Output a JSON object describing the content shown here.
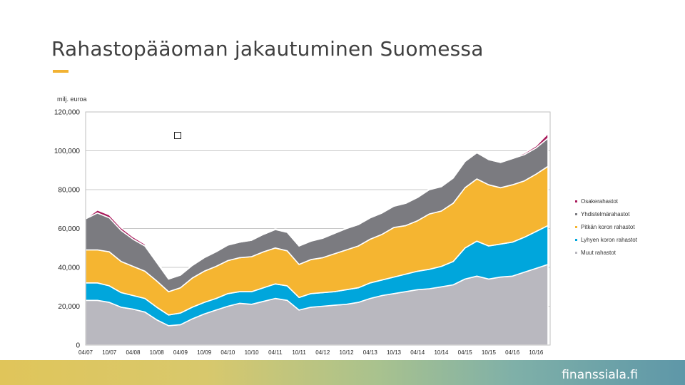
{
  "slide": {
    "title": "Rahastopääoman jakautuminen Suomessa",
    "footer_brand": "finanssiala.fi"
  },
  "colors": {
    "muut": "#b9b8bf",
    "lyhyen": "#00a6dc",
    "pitkan": "#f5b531",
    "yhdistelma": "#7b7b80",
    "osake": "#a8195a",
    "accent": "#f2b233"
  },
  "chart_data": {
    "type": "area",
    "stacked": true,
    "unit_label": "milj. euroa",
    "ylim": [
      0,
      120000
    ],
    "y_ticks": [
      "0",
      "20,000",
      "40,000",
      "60,000",
      "80,000",
      "100,000",
      "120,000"
    ],
    "y_tick_values": [
      0,
      20000,
      40000,
      60000,
      80000,
      100000,
      120000
    ],
    "x_ticks": [
      "04/07",
      "10/07",
      "04/08",
      "10/08",
      "04/09",
      "10/09",
      "04/10",
      "10/10",
      "04/11",
      "10/11",
      "04/12",
      "10/12",
      "04/13",
      "10/13",
      "04/14",
      "10/14",
      "04/15",
      "10/15",
      "04/16",
      "10/16"
    ],
    "x": [
      "04/07",
      "07/07",
      "10/07",
      "01/08",
      "04/08",
      "07/08",
      "10/08",
      "01/09",
      "04/09",
      "07/09",
      "10/09",
      "01/10",
      "04/10",
      "07/10",
      "10/10",
      "01/11",
      "04/11",
      "07/11",
      "10/11",
      "01/12",
      "04/12",
      "07/12",
      "10/12",
      "01/13",
      "04/13",
      "07/13",
      "10/13",
      "01/14",
      "04/14",
      "07/14",
      "10/14",
      "01/15",
      "04/15",
      "07/15",
      "10/15",
      "01/16",
      "04/16",
      "07/16",
      "10/16",
      "01/17"
    ],
    "series": [
      {
        "name": "Muut rahastot",
        "color_key": "muut",
        "values": [
          23000,
          23000,
          22000,
          19500,
          18500,
          17000,
          13000,
          10000,
          10500,
          13500,
          16000,
          18000,
          20000,
          21500,
          21000,
          22500,
          24000,
          23000,
          18000,
          19500,
          20000,
          20500,
          21000,
          22000,
          24000,
          25500,
          26500,
          27500,
          28500,
          29000,
          30000,
          31000,
          34000,
          35500,
          34000,
          35000,
          35500,
          37500,
          39500,
          41500
        ]
      },
      {
        "name": "Lyhyen koron rahastot",
        "color_key": "lyhyen",
        "values": [
          9000,
          9000,
          8500,
          7500,
          7000,
          7000,
          6500,
          5500,
          6000,
          6000,
          6000,
          6000,
          6500,
          6000,
          6500,
          7000,
          7500,
          7500,
          6500,
          7000,
          7000,
          7000,
          7500,
          7500,
          8000,
          8000,
          8500,
          9000,
          9500,
          10000,
          10500,
          12000,
          16000,
          18000,
          17000,
          17000,
          17500,
          18000,
          19000,
          20000
        ]
      },
      {
        "name": "Pitkän koron rahastot",
        "color_key": "pitkan",
        "values": [
          17000,
          17000,
          17500,
          16000,
          15000,
          14000,
          13500,
          12000,
          13000,
          15000,
          16000,
          16500,
          17000,
          17500,
          18000,
          18500,
          18500,
          18000,
          17000,
          17500,
          18000,
          19500,
          20500,
          21500,
          22500,
          23500,
          25500,
          25000,
          26000,
          28500,
          28500,
          30000,
          31000,
          32000,
          31500,
          29000,
          29500,
          29000,
          29500,
          30500
        ]
      },
      {
        "name": "Yhdistelmärahastot",
        "color_key": "yhdistelma",
        "values": [
          16000,
          19000,
          17500,
          16000,
          14000,
          13000,
          9500,
          6500,
          6500,
          6500,
          7000,
          7500,
          8000,
          8000,
          8500,
          9000,
          9500,
          9500,
          9500,
          9500,
          10000,
          10500,
          11000,
          11000,
          11000,
          11000,
          11000,
          11500,
          12000,
          12500,
          12500,
          13000,
          13500,
          13500,
          13000,
          13000,
          13500,
          13500,
          13500,
          14500
        ]
      },
      {
        "name": "Osakerahastot",
        "color_key": "osake",
        "values": [
          200,
          1500,
          1500,
          1400,
          1200,
          1000,
          800,
          300,
          200,
          200,
          200,
          300,
          300,
          300,
          300,
          300,
          300,
          300,
          300,
          300,
          300,
          300,
          300,
          300,
          300,
          300,
          300,
          300,
          300,
          300,
          300,
          300,
          300,
          300,
          300,
          300,
          400,
          800,
          1100,
          2400
        ]
      }
    ],
    "legend_order": [
      "Osakerahastot",
      "Yhdistelmärahastot",
      "Pitkän koron rahastot",
      "Lyhyen koron rahastot",
      "Muut rahastot"
    ],
    "legend_colors": [
      "osake",
      "yhdistelma",
      "pitkan",
      "lyhyen",
      "muut"
    ],
    "legend_position": "right",
    "grid": "horizontal"
  }
}
